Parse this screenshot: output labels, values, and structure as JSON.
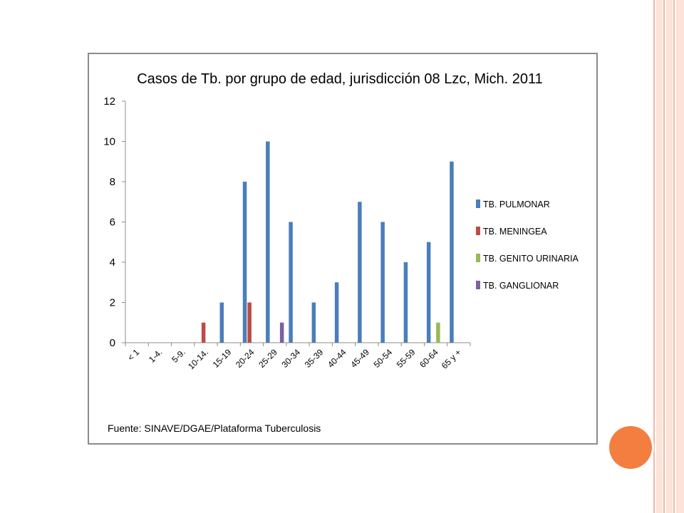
{
  "chart_data": {
    "type": "bar",
    "title": "Casos de Tb. por grupo de edad, jurisdicción 08 Lzc, Mich. 2011",
    "categories": [
      "< 1",
      "1-4.",
      "5-9.",
      "10-14.",
      "15-19",
      "20-24",
      "25-29",
      "30-34",
      "35-39",
      "40-44",
      "45-49",
      "50-54",
      "55-59",
      "60-64",
      "65 y +"
    ],
    "series": [
      {
        "name": "TB. PULMONAR",
        "color": "#4a7ebb",
        "values": [
          0,
          0,
          0,
          0,
          2,
          8,
          10,
          6,
          2,
          3,
          7,
          6,
          4,
          5,
          9
        ]
      },
      {
        "name": "TB. MENINGEA",
        "color": "#be4b48",
        "values": [
          0,
          0,
          0,
          1,
          0,
          2,
          0,
          0,
          0,
          0,
          0,
          0,
          0,
          0,
          0
        ]
      },
      {
        "name": "TB. GENITO URINARIA",
        "color": "#98b954",
        "values": [
          0,
          0,
          0,
          0,
          0,
          0,
          0,
          0,
          0,
          0,
          0,
          0,
          0,
          1,
          0
        ]
      },
      {
        "name": "TB. GANGLIONAR",
        "color": "#7d60a0",
        "values": [
          0,
          0,
          0,
          0,
          0,
          0,
          1,
          0,
          0,
          0,
          0,
          0,
          0,
          0,
          0
        ]
      }
    ],
    "ylim": [
      0,
      12
    ],
    "yticks": [
      0,
      2,
      4,
      6,
      8,
      10,
      12
    ],
    "xlabel": "",
    "ylabel": "",
    "grid": false,
    "legend_position": "right"
  },
  "source_note": "Fuente: SINAVE/DGAE/Plataforma Tuberculosis",
  "colors": {
    "frame_border": "#8c8c8c",
    "axis": "#8c8c8c",
    "accent_circle": "#f47e40",
    "stripe_light": "#fbe3da",
    "stripe_dark": "#f2b9a7"
  }
}
